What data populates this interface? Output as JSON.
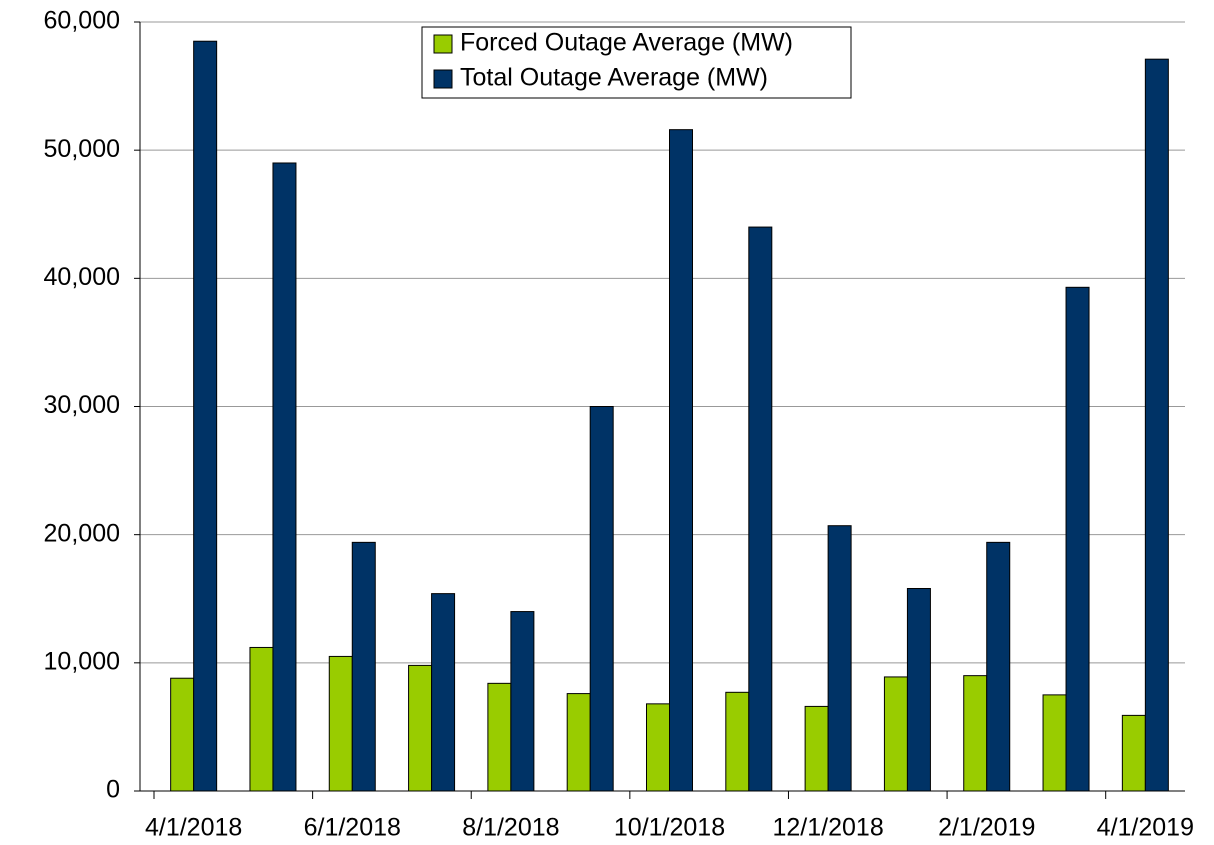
{
  "chart_data": {
    "type": "bar",
    "categories": [
      "4/1/2018",
      null,
      "6/1/2018",
      null,
      "8/1/2018",
      null,
      "10/1/2018",
      null,
      "12/1/2018",
      null,
      "2/1/2019",
      null,
      "4/1/2019"
    ],
    "series": [
      {
        "name": "Forced Outage Average (MW)",
        "color": "#99cc00",
        "values": [
          8800,
          11200,
          10500,
          9800,
          8400,
          7600,
          6800,
          7700,
          6600,
          8900,
          9000,
          7500,
          5900
        ]
      },
      {
        "name": "Total Outage Average (MW)",
        "color": "#003366",
        "values": [
          58500,
          49000,
          19400,
          15400,
          14000,
          30000,
          51600,
          44000,
          20700,
          15800,
          19400,
          39300,
          57100
        ]
      }
    ],
    "ylim": [
      0,
      60000
    ],
    "yticks": [
      0,
      {
        "value": 10000,
        "label": "10,000"
      },
      {
        "value": 20000,
        "label": "20,000"
      },
      {
        "value": 30000,
        "label": "30,000"
      },
      {
        "value": 40000,
        "label": "40,000"
      },
      {
        "value": 50000,
        "label": "50,000"
      },
      {
        "value": 60000,
        "label": "60,000"
      }
    ],
    "grid": true,
    "legend": "top"
  }
}
